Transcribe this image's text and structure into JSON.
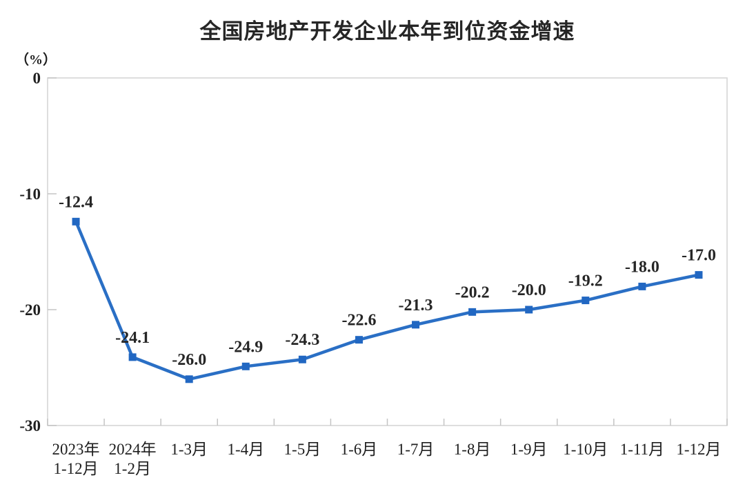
{
  "chart_data": {
    "type": "line",
    "title": "全国房地产开发企业本年到位资金增速",
    "ylabel": "（%）",
    "xlabel": "",
    "categories": [
      [
        "2023年",
        "1-12月"
      ],
      [
        "2024年",
        "1-2月"
      ],
      [
        "1-3月"
      ],
      [
        "1-4月"
      ],
      [
        "1-5月"
      ],
      [
        "1-6月"
      ],
      [
        "1-7月"
      ],
      [
        "1-8月"
      ],
      [
        "1-9月"
      ],
      [
        "1-10月"
      ],
      [
        "1-11月"
      ],
      [
        "1-12月"
      ]
    ],
    "values": [
      -12.4,
      -24.1,
      -26.0,
      -24.9,
      -24.3,
      -22.6,
      -21.3,
      -20.2,
      -20.0,
      -19.2,
      -18.0,
      -17.0
    ],
    "data_labels": [
      "-12.4",
      "-24.1",
      "-26.0",
      "-24.9",
      "-24.3",
      "-22.6",
      "-21.3",
      "-20.2",
      "-20.0",
      "-19.2",
      "-18.0",
      "-17.0"
    ],
    "ylim": [
      -30,
      0
    ],
    "yticks": [
      0,
      -10,
      -20,
      -30
    ],
    "grid": false,
    "legend_position": "none",
    "marker_shape": "square",
    "colors": {
      "line": "#2a6fc5",
      "marker": "#2167c2",
      "axis": "#d6d6d6",
      "tick": "#c4c4c4",
      "text": "#1f1f1f",
      "title": "#262626",
      "background": "#ffffff"
    }
  }
}
